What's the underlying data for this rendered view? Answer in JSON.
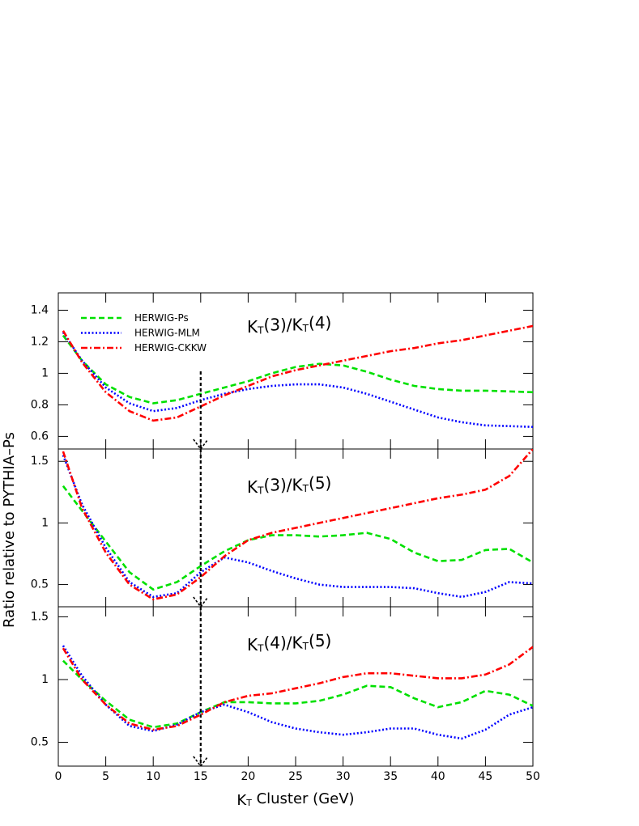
{
  "chart_data": [
    {
      "type": "line",
      "annotation": "KT(3)/KT(4)",
      "xlim": [
        0,
        50
      ],
      "ylim": [
        0.52,
        1.51
      ],
      "yticks": [
        0.6,
        0.8,
        1,
        1.2,
        1.4
      ],
      "vline": 15,
      "x": [
        0.5,
        2.5,
        5,
        7.5,
        10,
        12.5,
        15,
        17.5,
        20,
        22.5,
        25,
        27.5,
        30,
        32.5,
        35,
        37.5,
        40,
        42.5,
        45,
        47.5,
        50
      ],
      "series": [
        {
          "name": "HERWIG-Ps",
          "color": "#00e000",
          "dash": "dashed",
          "values": [
            1.24,
            1.08,
            0.93,
            0.85,
            0.81,
            0.83,
            0.87,
            0.91,
            0.95,
            1.0,
            1.04,
            1.06,
            1.05,
            1.01,
            0.96,
            0.92,
            0.9,
            0.89,
            0.89,
            0.885,
            0.88
          ]
        },
        {
          "name": "HERWIG-MLM",
          "color": "#0000ff",
          "dash": "dotted",
          "values": [
            1.26,
            1.08,
            0.91,
            0.81,
            0.76,
            0.78,
            0.83,
            0.87,
            0.9,
            0.92,
            0.93,
            0.93,
            0.91,
            0.87,
            0.82,
            0.77,
            0.72,
            0.69,
            0.67,
            0.665,
            0.66
          ]
        },
        {
          "name": "HERWIG-CKKW",
          "color": "#ff0000",
          "dash": "dashdot",
          "values": [
            1.27,
            1.07,
            0.88,
            0.76,
            0.7,
            0.72,
            0.79,
            0.86,
            0.92,
            0.98,
            1.02,
            1.05,
            1.08,
            1.11,
            1.14,
            1.16,
            1.19,
            1.21,
            1.24,
            1.27,
            1.3
          ]
        }
      ]
    },
    {
      "type": "line",
      "annotation": "KT(3)/KT(5)",
      "xlim": [
        0,
        50
      ],
      "ylim": [
        0.32,
        1.6
      ],
      "yticks": [
        0.5,
        1,
        1.5
      ],
      "vline": 15,
      "y_label": "Ratio relative to PYTHIA–Ps",
      "x": [
        0.5,
        2.5,
        5,
        7.5,
        10,
        12.5,
        15,
        17.5,
        20,
        22.5,
        25,
        27.5,
        30,
        32.5,
        35,
        37.5,
        40,
        42.5,
        45,
        47.5,
        50
      ],
      "series": [
        {
          "color": "#00e000",
          "dash": "dashed",
          "values": [
            1.3,
            1.1,
            0.85,
            0.6,
            0.46,
            0.52,
            0.65,
            0.77,
            0.86,
            0.9,
            0.9,
            0.89,
            0.9,
            0.92,
            0.87,
            0.76,
            0.69,
            0.7,
            0.78,
            0.79,
            0.68
          ]
        },
        {
          "color": "#0000ff",
          "dash": "dotted",
          "values": [
            1.55,
            1.15,
            0.8,
            0.52,
            0.4,
            0.43,
            0.6,
            0.72,
            0.68,
            0.61,
            0.55,
            0.5,
            0.48,
            0.48,
            0.48,
            0.47,
            0.43,
            0.4,
            0.44,
            0.52,
            0.51
          ]
        },
        {
          "color": "#ff0000",
          "dash": "dashdot",
          "values": [
            1.58,
            1.12,
            0.76,
            0.5,
            0.38,
            0.42,
            0.56,
            0.73,
            0.86,
            0.92,
            0.96,
            1.0,
            1.04,
            1.08,
            1.12,
            1.16,
            1.2,
            1.23,
            1.27,
            1.38,
            1.6
          ]
        }
      ]
    },
    {
      "type": "line",
      "annotation": "KT(4)/KT(5)",
      "xlim": [
        0,
        50
      ],
      "ylim": [
        0.31,
        1.58
      ],
      "yticks": [
        0.5,
        1,
        1.5
      ],
      "vline": 15,
      "x_label": "KT Cluster (GeV)",
      "xticks": [
        0,
        5,
        10,
        15,
        20,
        25,
        30,
        35,
        40,
        45,
        50
      ],
      "x": [
        0.5,
        2.5,
        5,
        7.5,
        10,
        12.5,
        15,
        17.5,
        20,
        22.5,
        25,
        27.5,
        30,
        32.5,
        35,
        37.5,
        40,
        42.5,
        45,
        47.5,
        50
      ],
      "series": [
        {
          "color": "#00e000",
          "dash": "dashed",
          "values": [
            1.15,
            1.0,
            0.83,
            0.68,
            0.62,
            0.65,
            0.74,
            0.82,
            0.82,
            0.81,
            0.81,
            0.83,
            0.88,
            0.95,
            0.94,
            0.85,
            0.78,
            0.82,
            0.91,
            0.88,
            0.79
          ]
        },
        {
          "color": "#0000ff",
          "dash": "dotted",
          "values": [
            1.27,
            1.03,
            0.8,
            0.63,
            0.59,
            0.64,
            0.74,
            0.8,
            0.74,
            0.66,
            0.61,
            0.58,
            0.56,
            0.58,
            0.61,
            0.61,
            0.56,
            0.53,
            0.6,
            0.72,
            0.78
          ]
        },
        {
          "color": "#ff0000",
          "dash": "dashdot",
          "values": [
            1.25,
            1.0,
            0.8,
            0.65,
            0.6,
            0.63,
            0.72,
            0.82,
            0.87,
            0.89,
            0.93,
            0.97,
            1.02,
            1.05,
            1.05,
            1.03,
            1.01,
            1.01,
            1.04,
            1.12,
            1.26
          ]
        }
      ]
    }
  ]
}
